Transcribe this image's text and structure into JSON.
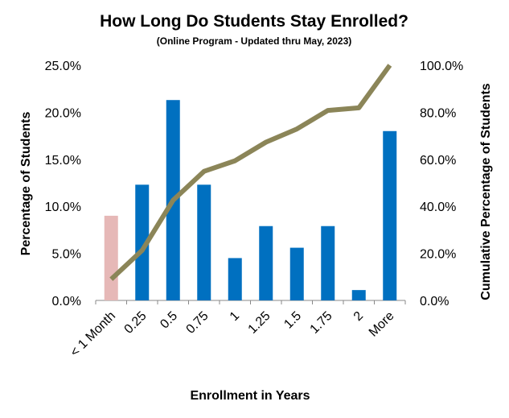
{
  "chart_data": {
    "type": "bar",
    "title": "How Long Do Students Stay Enrolled?",
    "subtitle": "(Online Program - Updated thru May, 2023)",
    "xlabel": "Enrollment  in Years",
    "ylabel": "Percentage of Students",
    "y2label": "Cumulative Percentage of Students",
    "categories": [
      "< 1 Month",
      "0.25",
      "0.5",
      "0.75",
      "1",
      "1.25",
      "1.5",
      "1.75",
      "2",
      "More"
    ],
    "series": [
      {
        "type": "bar",
        "values": [
          9.0,
          12.3,
          21.3,
          12.3,
          4.5,
          7.9,
          5.6,
          7.9,
          1.1,
          18.0
        ],
        "color": "#0070C0",
        "highlight_index": 0,
        "highlight_color": "#E6B8B7"
      },
      {
        "type": "line",
        "axis": "secondary",
        "values": [
          9.0,
          21.3,
          42.6,
          54.9,
          59.4,
          67.3,
          72.9,
          80.8,
          81.9,
          100.0
        ],
        "color": "#8B8558"
      }
    ],
    "ylim": [
      0,
      25
    ],
    "y2lim": [
      0,
      100
    ],
    "yticks": [
      "0.0%",
      "5.0%",
      "10.0%",
      "15.0%",
      "20.0%",
      "25.0%"
    ],
    "y2ticks": [
      "0.0%",
      "20.0%",
      "40.0%",
      "60.0%",
      "80.0%",
      "100.0%"
    ],
    "grid": false,
    "legend": "none"
  }
}
